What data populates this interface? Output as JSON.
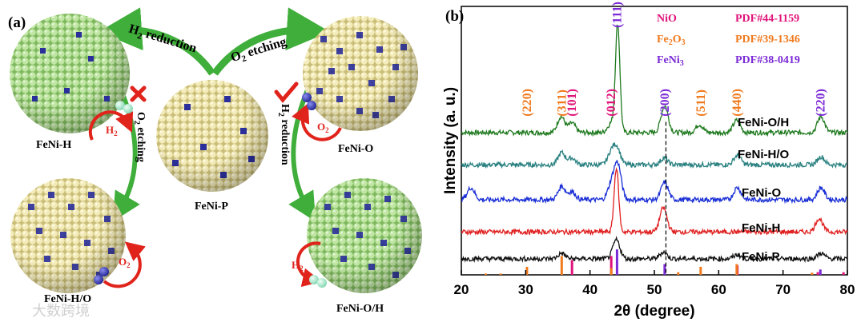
{
  "panel_a": {
    "label": "(a)",
    "spheres": {
      "top_left": "FeNi-H",
      "top_right": "FeNi-O",
      "center": "FeNi-P",
      "bottom_left": "FeNi-H/O",
      "bottom_right": "FeNi-O/H"
    },
    "arrows": {
      "top_left_label": "H",
      "top_left_sub": "2",
      "top_left_rest": " reduction",
      "top_right_label": "O",
      "top_right_sub": "2",
      "top_right_rest": " etching",
      "left_vertical_label": "O",
      "left_vertical_sub": "2",
      "left_vertical_rest": " etching",
      "right_vertical_label": "H",
      "right_vertical_sub": "2",
      "right_vertical_rest": " reduction"
    },
    "gas_badges": {
      "h2_main": "H",
      "h2_sub": "2",
      "o2_main": "O",
      "o2_sub": "2"
    },
    "colors": {
      "green_sphere": "#a8d98a",
      "tan_sphere": "#ece3a8",
      "dopant": "#2b2f9a",
      "arrow_green": "#3fae3a",
      "reject_red": "#e0241c"
    }
  },
  "watermark": "大数跨境",
  "chart_data": {
    "type": "line",
    "panel_label": "(b)",
    "xlabel": "2θ (degree)",
    "ylabel": "Intensity (a. u.)",
    "xlim": [
      20,
      80
    ],
    "xticks": [
      "20",
      "30",
      "40",
      "50",
      "60",
      "70",
      "80"
    ],
    "dashed_line_x": 51.8,
    "legend": [
      {
        "name": "NiO",
        "pdf": "PDF#44-1159",
        "color": "#e0137a"
      },
      {
        "name": "Fe",
        "sub1": "2",
        "name2": "O",
        "sub2": "3",
        "pdf": "PDF#39-1346",
        "color": "#f07a1e"
      },
      {
        "name": "FeNi",
        "sub1": "3",
        "pdf": "PDF#38-0419",
        "color": "#7b2ad6"
      }
    ],
    "series": [
      {
        "name": "FeNi-O/H",
        "color": "#1f7a1f",
        "baseline": 5.3,
        "peaks": [
          [
            35.5,
            0.6
          ],
          [
            37.2,
            0.35
          ],
          [
            43.3,
            0.35
          ],
          [
            44.3,
            4.0
          ],
          [
            51.6,
            1.0
          ],
          [
            57.0,
            0.3
          ],
          [
            62.8,
            0.45
          ],
          [
            75.9,
            0.6
          ]
        ]
      },
      {
        "name": "FeNi-H/O",
        "color": "#2a8080",
        "baseline": 4.1,
        "peaks": [
          [
            35.6,
            0.45
          ],
          [
            37.2,
            0.25
          ],
          [
            43.3,
            0.45
          ],
          [
            44.2,
            0.6
          ],
          [
            51.5,
            0.25
          ],
          [
            62.9,
            0.35
          ],
          [
            75.9,
            0.3
          ]
        ]
      },
      {
        "name": "FeNi-O",
        "color": "#1a2fd6",
        "baseline": 2.8,
        "peaks": [
          [
            21.5,
            0.45
          ],
          [
            35.6,
            0.5
          ],
          [
            37.2,
            0.3
          ],
          [
            43.3,
            0.55
          ],
          [
            44.3,
            1.3
          ],
          [
            51.6,
            0.65
          ],
          [
            62.9,
            0.45
          ],
          [
            75.9,
            0.45
          ]
        ]
      },
      {
        "name": "FeNi-H",
        "color": "#e02020",
        "baseline": 1.6,
        "peaks": [
          [
            44.1,
            2.4
          ],
          [
            51.4,
            0.9
          ],
          [
            75.6,
            0.5
          ]
        ]
      },
      {
        "name": "FeNi-P",
        "color": "#111111",
        "baseline": 0.6,
        "peaks": [
          [
            35.6,
            0.2
          ],
          [
            44.1,
            0.7
          ],
          [
            51.4,
            0.25
          ],
          [
            62.9,
            0.15
          ],
          [
            75.9,
            0.2
          ]
        ]
      }
    ],
    "reference_lines": [
      {
        "phase": "NiO",
        "color": "#e0137a",
        "lines": [
          [
            37.2,
            0.55
          ],
          [
            43.3,
            0.7
          ],
          [
            62.9,
            0.35
          ],
          [
            75.4,
            0.1
          ],
          [
            79.4,
            0.1
          ]
        ]
      },
      {
        "phase": "Fe2O3",
        "color": "#f07a1e",
        "lines": [
          [
            23.8,
            0.05
          ],
          [
            26.1,
            0.05
          ],
          [
            30.2,
            0.3
          ],
          [
            35.6,
            0.7
          ],
          [
            43.3,
            0.25
          ],
          [
            53.7,
            0.1
          ],
          [
            57.2,
            0.3
          ],
          [
            62.8,
            0.4
          ],
          [
            74.5,
            0.08
          ]
        ]
      },
      {
        "phase": "FeNi3",
        "color": "#7b2ad6",
        "lines": [
          [
            44.2,
            0.95
          ],
          [
            51.6,
            0.4
          ],
          [
            75.8,
            0.2
          ]
        ]
      }
    ],
    "peak_annotations": [
      {
        "label": "(220)",
        "x": 30.2,
        "color": "#f07a1e",
        "level": 5.9
      },
      {
        "label": "(311)",
        "x": 35.6,
        "color": "#f07a1e",
        "level": 5.9
      },
      {
        "label": "(101)",
        "x": 37.2,
        "color": "#e0137a",
        "level": 5.9
      },
      {
        "label": "(012)",
        "x": 43.3,
        "color": "#e0137a",
        "level": 5.9
      },
      {
        "label": "(111)",
        "x": 44.2,
        "color": "#7b2ad6",
        "level": 9.2
      },
      {
        "label": "(200)",
        "x": 51.6,
        "color": "#7b2ad6",
        "level": 5.9
      },
      {
        "label": "(511)",
        "x": 57.2,
        "color": "#f07a1e",
        "level": 5.9
      },
      {
        "label": "(440)",
        "x": 62.8,
        "color": "#f07a1e",
        "level": 5.9
      },
      {
        "label": "(220)",
        "x": 75.8,
        "color": "#7b2ad6",
        "level": 5.9
      }
    ]
  }
}
